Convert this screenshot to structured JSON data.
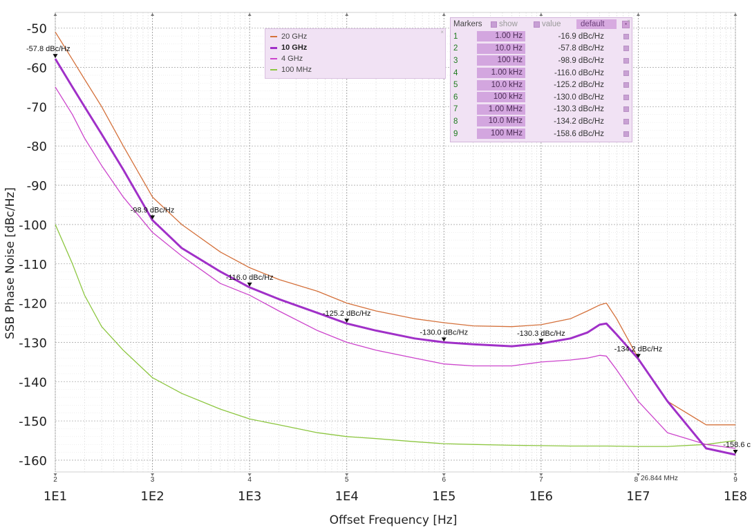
{
  "chart_data": {
    "type": "line",
    "xlabel": "Offset Frequency [Hz]",
    "ylabel": "SSB Phase Noise [dBc/Hz]",
    "x_scale": "log",
    "xlim": [
      10,
      100000000
    ],
    "ylim": [
      -163,
      -46
    ],
    "x_tick_labels": [
      "1E1",
      "1E2",
      "1E3",
      "1E4",
      "1E5",
      "1E6",
      "1E7",
      "1E8"
    ],
    "x_tick_values": [
      10,
      100,
      1000,
      10000,
      100000,
      1000000,
      10000000,
      100000000
    ],
    "decade_numbers": [
      "2",
      "3",
      "4",
      "5",
      "6",
      "7",
      "8",
      "9"
    ],
    "y_ticks": [
      -50,
      -60,
      -70,
      -80,
      -90,
      -100,
      -110,
      -120,
      -130,
      -140,
      -150,
      -160
    ],
    "grid": true,
    "legend_position": "top-center",
    "series": [
      {
        "name": "20 GHz",
        "color": "#d4703a",
        "width": 1.3,
        "x": [
          10,
          15,
          20,
          30,
          50,
          100,
          200,
          500,
          1000,
          2000,
          5000,
          10000,
          20000,
          50000,
          100000,
          200000,
          500000,
          1000000,
          2000000,
          3000000,
          4000000,
          4700000,
          6000000,
          10000000,
          20000000,
          50000000,
          100000000
        ],
        "y": [
          -51,
          -58,
          -63,
          -70,
          -80,
          -93,
          -100,
          -107,
          -111,
          -114,
          -117,
          -120,
          -122,
          -124,
          -125,
          -125.8,
          -126,
          -125.5,
          -124,
          -122,
          -120.5,
          -120,
          -124,
          -134,
          -145,
          -151,
          -151
        ]
      },
      {
        "name": "10 GHz",
        "color": "#a030c8",
        "width": 3,
        "x": [
          10,
          15,
          20,
          30,
          50,
          100,
          200,
          500,
          1000,
          2000,
          5000,
          10000,
          20000,
          50000,
          100000,
          200000,
          500000,
          1000000,
          2000000,
          3000000,
          4000000,
          4700000,
          6000000,
          10000000,
          20000000,
          50000000,
          100000000
        ],
        "y": [
          -57.8,
          -65,
          -70,
          -77,
          -86,
          -98.9,
          -106,
          -112,
          -116,
          -119,
          -122.5,
          -125.2,
          -127,
          -129,
          -130,
          -130.5,
          -131,
          -130.3,
          -129,
          -127.5,
          -125.5,
          -125.2,
          -128,
          -134.2,
          -145,
          -157,
          -158.6
        ]
      },
      {
        "name": "4 GHz",
        "color": "#cc44cc",
        "width": 1.3,
        "x": [
          10,
          15,
          20,
          30,
          50,
          100,
          200,
          500,
          1000,
          2000,
          5000,
          10000,
          20000,
          50000,
          100000,
          200000,
          500000,
          1000000,
          2000000,
          3000000,
          4000000,
          4700000,
          6000000,
          10000000,
          20000000,
          50000000,
          100000000
        ],
        "y": [
          -65,
          -72,
          -78,
          -85,
          -93,
          -102,
          -108,
          -115,
          -118,
          -122,
          -127,
          -130,
          -132,
          -134,
          -135.5,
          -136,
          -136,
          -135,
          -134.5,
          -134,
          -133.3,
          -133.5,
          -137,
          -145,
          -153,
          -156,
          -157
        ]
      },
      {
        "name": "100 MHz",
        "color": "#8cc63f",
        "width": 1.3,
        "x": [
          10,
          15,
          20,
          30,
          50,
          100,
          200,
          500,
          1000,
          2000,
          5000,
          10000,
          20000,
          50000,
          100000,
          200000,
          500000,
          1000000,
          2000000,
          5000000,
          10000000,
          20000000,
          50000000,
          100000000
        ],
        "y": [
          -100,
          -110,
          -118,
          -126,
          -132,
          -139,
          -143,
          -147,
          -149.5,
          -151,
          -153,
          -154,
          -154.5,
          -155.3,
          -155.8,
          -156,
          -156.2,
          -156.3,
          -156.4,
          -156.4,
          -156.5,
          -156.5,
          -156,
          -155
        ]
      }
    ],
    "markers": [
      {
        "num": "1",
        "freq": "1.00 Hz",
        "value": "-16.9 dBc/Hz"
      },
      {
        "num": "2",
        "freq": "10.0 Hz",
        "value": "-57.8 dBc/Hz",
        "x": 10,
        "y": -57.8,
        "label": "-57.8 dBc/Hz"
      },
      {
        "num": "3",
        "freq": "100 Hz",
        "value": "-98.9 dBc/Hz",
        "x": 100,
        "y": -98.9,
        "label": "-98.9 dBc/Hz"
      },
      {
        "num": "4",
        "freq": "1.00 kHz",
        "value": "-116.0 dBc/Hz",
        "x": 1000,
        "y": -116.0,
        "label": "-116.0 dBc/Hz"
      },
      {
        "num": "5",
        "freq": "10.0 kHz",
        "value": "-125.2 dBc/Hz",
        "x": 10000,
        "y": -125.2,
        "label": "-125.2 dBc/Hz"
      },
      {
        "num": "6",
        "freq": "100 kHz",
        "value": "-130.0 dBc/Hz",
        "x": 100000,
        "y": -130.0,
        "label": "-130.0 dBc/Hz"
      },
      {
        "num": "7",
        "freq": "1.00 MHz",
        "value": "-130.3 dBc/Hz",
        "x": 1000000,
        "y": -130.3,
        "label": "-130.3 dBc/Hz"
      },
      {
        "num": "8",
        "freq": "10.0 MHz",
        "value": "-134.2 dBc/Hz",
        "x": 10000000,
        "y": -134.2,
        "label": "-134.2 dBc/Hz"
      },
      {
        "num": "9",
        "freq": "100 MHz",
        "value": "-158.6 dBc/Hz",
        "x": 100000000,
        "y": -158.6,
        "label": "-158.6 c"
      }
    ],
    "cursor_readout": "26.844 MHz"
  },
  "markers_panel": {
    "title": "Markers",
    "show_label": "show",
    "value_label": "value",
    "default_label": "default"
  }
}
